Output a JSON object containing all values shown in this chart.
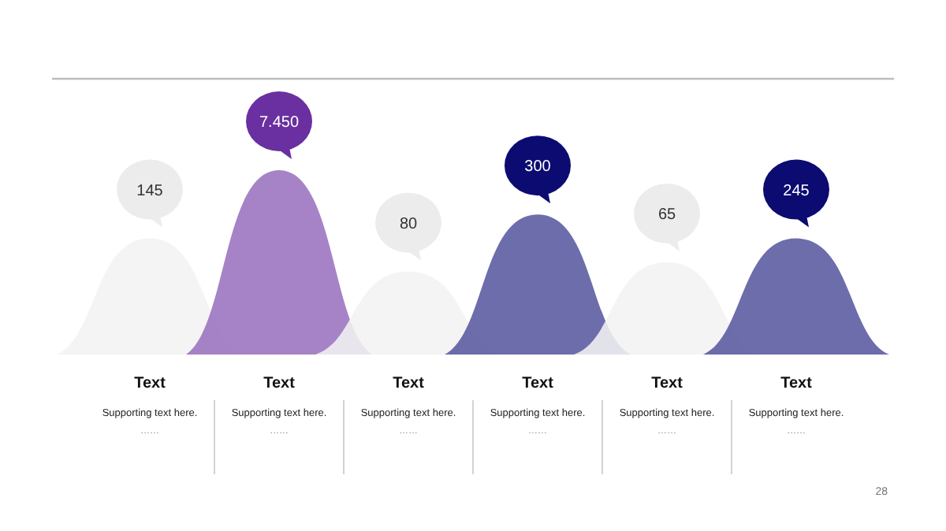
{
  "chart_data": {
    "type": "other",
    "categories": [
      "Text",
      "Text",
      "Text",
      "Text",
      "Text",
      "Text"
    ],
    "values": [
      145,
      7.45,
      80,
      300,
      65,
      245
    ],
    "value_labels": [
      "145",
      "7.450",
      "80",
      "300",
      "65",
      "245"
    ],
    "colors": [
      "#ececec",
      "#6a2fa0",
      "#ececec",
      "#0b0b72",
      "#ececec",
      "#0b0b72"
    ],
    "annotations": [
      "Supporting text here.",
      "Supporting text here.",
      "Supporting text here.",
      "Supporting text here.",
      "Supporting text here.",
      "Supporting text here.",
      "……",
      "……",
      "……",
      "……",
      "……",
      "……",
      "28"
    ]
  }
}
